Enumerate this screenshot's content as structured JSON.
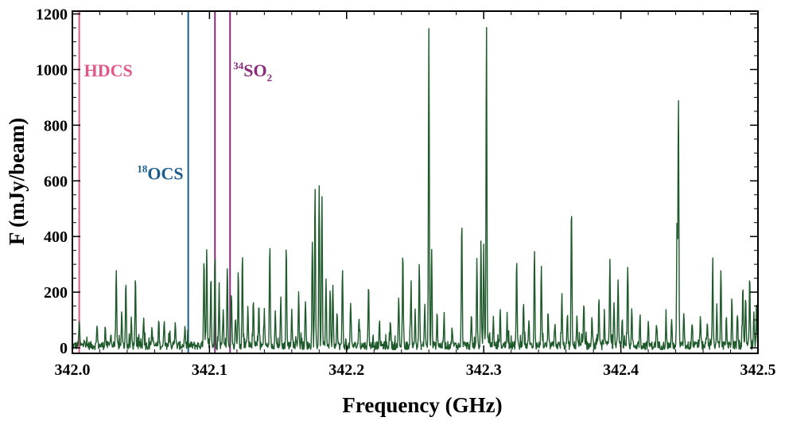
{
  "chart_data": {
    "type": "line",
    "xlabel": "Frequency (GHz)",
    "ylabel": "F (mJy/beam)",
    "xlim": [
      342.0,
      342.5
    ],
    "ylim": [
      -20,
      1210
    ],
    "xticks": [
      342.0,
      342.1,
      342.2,
      342.3,
      342.4,
      342.5
    ],
    "xtick_labels": [
      "342.0",
      "342.1",
      "342.2",
      "342.3",
      "342.4",
      "342.5"
    ],
    "yticks": [
      0,
      200,
      400,
      600,
      800,
      1000,
      1200
    ],
    "ytick_labels": [
      "0",
      "200",
      "400",
      "600",
      "800",
      "1000",
      "1200"
    ],
    "grid": false,
    "line_color": "#1f5a2c",
    "baseline_noise": 15,
    "peaks": [
      {
        "x": 342.005,
        "y": 90
      },
      {
        "x": 342.009,
        "y": 30
      },
      {
        "x": 342.018,
        "y": 70
      },
      {
        "x": 342.024,
        "y": 70
      },
      {
        "x": 342.028,
        "y": 50
      },
      {
        "x": 342.032,
        "y": 260
      },
      {
        "x": 342.036,
        "y": 120
      },
      {
        "x": 342.039,
        "y": 230
      },
      {
        "x": 342.043,
        "y": 90
      },
      {
        "x": 342.046,
        "y": 240
      },
      {
        "x": 342.052,
        "y": 110
      },
      {
        "x": 342.058,
        "y": 70
      },
      {
        "x": 342.063,
        "y": 90
      },
      {
        "x": 342.067,
        "y": 100
      },
      {
        "x": 342.071,
        "y": 60
      },
      {
        "x": 342.075,
        "y": 80
      },
      {
        "x": 342.082,
        "y": 60
      },
      {
        "x": 342.096,
        "y": 310
      },
      {
        "x": 342.098,
        "y": 340
      },
      {
        "x": 342.101,
        "y": 250
      },
      {
        "x": 342.104,
        "y": 330
      },
      {
        "x": 342.107,
        "y": 200
      },
      {
        "x": 342.11,
        "y": 130
      },
      {
        "x": 342.113,
        "y": 280
      },
      {
        "x": 342.116,
        "y": 190
      },
      {
        "x": 342.119,
        "y": 110
      },
      {
        "x": 342.121,
        "y": 270
      },
      {
        "x": 342.124,
        "y": 330
      },
      {
        "x": 342.128,
        "y": 150
      },
      {
        "x": 342.132,
        "y": 170
      },
      {
        "x": 342.136,
        "y": 140
      },
      {
        "x": 342.14,
        "y": 120
      },
      {
        "x": 342.144,
        "y": 360
      },
      {
        "x": 342.148,
        "y": 140
      },
      {
        "x": 342.152,
        "y": 170
      },
      {
        "x": 342.156,
        "y": 365
      },
      {
        "x": 342.16,
        "y": 130
      },
      {
        "x": 342.165,
        "y": 190
      },
      {
        "x": 342.17,
        "y": 160
      },
      {
        "x": 342.175,
        "y": 380
      },
      {
        "x": 342.177,
        "y": 560
      },
      {
        "x": 342.18,
        "y": 560
      },
      {
        "x": 342.182,
        "y": 555
      },
      {
        "x": 342.185,
        "y": 240
      },
      {
        "x": 342.188,
        "y": 210
      },
      {
        "x": 342.19,
        "y": 230
      },
      {
        "x": 342.193,
        "y": 130
      },
      {
        "x": 342.197,
        "y": 280
      },
      {
        "x": 342.203,
        "y": 150
      },
      {
        "x": 342.209,
        "y": 100
      },
      {
        "x": 342.216,
        "y": 220
      },
      {
        "x": 342.224,
        "y": 80
      },
      {
        "x": 342.232,
        "y": 90
      },
      {
        "x": 342.238,
        "y": 160
      },
      {
        "x": 342.241,
        "y": 330
      },
      {
        "x": 342.247,
        "y": 230
      },
      {
        "x": 342.25,
        "y": 140
      },
      {
        "x": 342.253,
        "y": 300
      },
      {
        "x": 342.257,
        "y": 150
      },
      {
        "x": 342.26,
        "y": 1140
      },
      {
        "x": 342.262,
        "y": 340
      },
      {
        "x": 342.266,
        "y": 120
      },
      {
        "x": 342.271,
        "y": 90
      },
      {
        "x": 342.277,
        "y": 70
      },
      {
        "x": 342.284,
        "y": 465
      },
      {
        "x": 342.291,
        "y": 100
      },
      {
        "x": 342.295,
        "y": 300
      },
      {
        "x": 342.298,
        "y": 375
      },
      {
        "x": 342.3,
        "y": 350
      },
      {
        "x": 342.302,
        "y": 1150
      },
      {
        "x": 342.307,
        "y": 100
      },
      {
        "x": 342.312,
        "y": 120
      },
      {
        "x": 342.317,
        "y": 90
      },
      {
        "x": 342.324,
        "y": 310
      },
      {
        "x": 342.329,
        "y": 170
      },
      {
        "x": 342.333,
        "y": 90
      },
      {
        "x": 342.337,
        "y": 355
      },
      {
        "x": 342.342,
        "y": 290
      },
      {
        "x": 342.347,
        "y": 100
      },
      {
        "x": 342.352,
        "y": 90
      },
      {
        "x": 342.357,
        "y": 180
      },
      {
        "x": 342.361,
        "y": 110
      },
      {
        "x": 342.364,
        "y": 510
      },
      {
        "x": 342.368,
        "y": 110
      },
      {
        "x": 342.373,
        "y": 160
      },
      {
        "x": 342.379,
        "y": 100
      },
      {
        "x": 342.384,
        "y": 170
      },
      {
        "x": 342.388,
        "y": 120
      },
      {
        "x": 342.392,
        "y": 300
      },
      {
        "x": 342.395,
        "y": 150
      },
      {
        "x": 342.398,
        "y": 240
      },
      {
        "x": 342.401,
        "y": 110
      },
      {
        "x": 342.405,
        "y": 280
      },
      {
        "x": 342.408,
        "y": 130
      },
      {
        "x": 342.414,
        "y": 110
      },
      {
        "x": 342.42,
        "y": 80
      },
      {
        "x": 342.426,
        "y": 70
      },
      {
        "x": 342.433,
        "y": 100
      },
      {
        "x": 342.437,
        "y": 90
      },
      {
        "x": 342.441,
        "y": 455
      },
      {
        "x": 342.442,
        "y": 900
      },
      {
        "x": 342.446,
        "y": 120
      },
      {
        "x": 342.452,
        "y": 90
      },
      {
        "x": 342.458,
        "y": 110
      },
      {
        "x": 342.463,
        "y": 80
      },
      {
        "x": 342.467,
        "y": 315
      },
      {
        "x": 342.47,
        "y": 140
      },
      {
        "x": 342.473,
        "y": 280
      },
      {
        "x": 342.477,
        "y": 100
      },
      {
        "x": 342.481,
        "y": 180
      },
      {
        "x": 342.485,
        "y": 120
      },
      {
        "x": 342.489,
        "y": 210
      },
      {
        "x": 342.491,
        "y": 190
      },
      {
        "x": 342.494,
        "y": 250
      },
      {
        "x": 342.497,
        "y": 120
      },
      {
        "x": 342.499,
        "y": 150
      }
    ],
    "markers": [
      {
        "x": 342.005,
        "color": "#e0578a",
        "label_main": "HDCS",
        "label_sup": "",
        "label_sub": ""
      },
      {
        "x": 342.0845,
        "color": "#1e5c8c",
        "label_main": "OCS",
        "label_sup": "18",
        "label_sub": ""
      },
      {
        "x": 342.104,
        "color": "#8a2a7a",
        "label_main": "",
        "label_sup": "",
        "label_sub": ""
      },
      {
        "x": 342.115,
        "color": "#8a2a7a",
        "label_main": "SO",
        "label_sup": "34",
        "label_sub": "2"
      }
    ]
  }
}
